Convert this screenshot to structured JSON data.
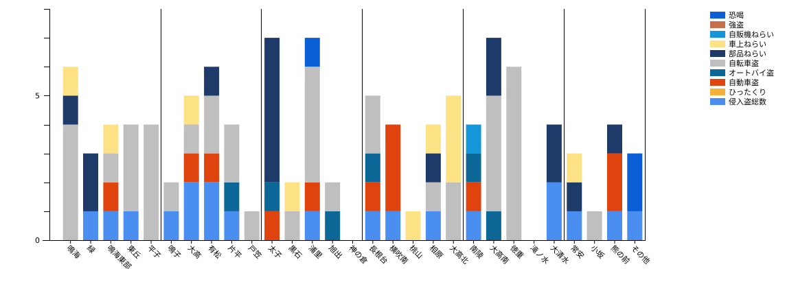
{
  "chart_data": {
    "type": "bar",
    "stacked": true,
    "title": "",
    "xlabel": "",
    "ylabel": "",
    "ylim": [
      0,
      8
    ],
    "y_ticks": [
      0,
      5
    ],
    "grid": false,
    "legend_position": "top-right",
    "categories": [
      "鳴海",
      "緑",
      "鳴海東部",
      "東丘",
      "平子",
      "鳴子",
      "大高",
      "有松",
      "片平",
      "戸笠",
      "太子",
      "黒石",
      "浦里",
      "旭出",
      "神の倉",
      "長根台",
      "横吹南",
      "桃山",
      "相原",
      "大高北",
      "南陵",
      "大高南",
      "徳重",
      "滝ノ水",
      "大清水",
      "常安",
      "小坂",
      "熊の前",
      "その他"
    ],
    "series": [
      {
        "name": "侵入盗総数",
        "color": "#4a8fef",
        "values": [
          0,
          1,
          1,
          1,
          0,
          1,
          2,
          2,
          1,
          0,
          0,
          0,
          1,
          0,
          0,
          1,
          1,
          0,
          1,
          0,
          1,
          0,
          0,
          0,
          2,
          1,
          0,
          1,
          1
        ]
      },
      {
        "name": "ひったくり",
        "color": "#f5b13a",
        "values": [
          0,
          0,
          0,
          0,
          0,
          0,
          0,
          0,
          0,
          0,
          0,
          0,
          0,
          0,
          0,
          0,
          0,
          0,
          0,
          0,
          0,
          0,
          0,
          0,
          0,
          0,
          0,
          0,
          0
        ]
      },
      {
        "name": "自動車盗",
        "color": "#e0440e",
        "values": [
          0,
          0,
          1,
          0,
          0,
          0,
          1,
          1,
          0,
          0,
          1,
          0,
          1,
          0,
          0,
          1,
          3,
          0,
          0,
          0,
          1,
          0,
          0,
          0,
          0,
          0,
          0,
          2,
          0
        ]
      },
      {
        "name": "オートバイ盗",
        "color": "#0c6696",
        "values": [
          0,
          0,
          0,
          0,
          0,
          0,
          0,
          0,
          1,
          0,
          1,
          0,
          0,
          1,
          0,
          1,
          0,
          0,
          0,
          0,
          1,
          1,
          0,
          0,
          0,
          0,
          0,
          0,
          0
        ]
      },
      {
        "name": "自転車盗",
        "color": "#bfbfbf",
        "values": [
          4,
          0,
          1,
          3,
          4,
          1,
          1,
          2,
          2,
          1,
          0,
          1,
          4,
          1,
          0,
          2,
          0,
          0,
          1,
          2,
          0,
          4,
          6,
          0,
          0,
          0,
          1,
          0,
          0
        ]
      },
      {
        "name": "部品ねらい",
        "color": "#1d3a68",
        "values": [
          1,
          2,
          0,
          0,
          0,
          0,
          0,
          1,
          0,
          0,
          5,
          0,
          0,
          0,
          0,
          0,
          0,
          0,
          1,
          0,
          0,
          2,
          0,
          0,
          2,
          1,
          0,
          1,
          0
        ]
      },
      {
        "name": "車上ねらい",
        "color": "#fde185",
        "values": [
          1,
          0,
          1,
          0,
          0,
          0,
          1,
          0,
          0,
          0,
          0,
          1,
          0,
          0,
          0,
          0,
          0,
          1,
          1,
          3,
          0,
          0,
          0,
          0,
          0,
          1,
          0,
          0,
          0
        ]
      },
      {
        "name": "自販機ねらい",
        "color": "#1596d9",
        "values": [
          0,
          0,
          0,
          0,
          0,
          0,
          0,
          0,
          0,
          0,
          0,
          0,
          0,
          0,
          0,
          0,
          0,
          0,
          0,
          0,
          1,
          0,
          0,
          0,
          0,
          0,
          0,
          0,
          0
        ]
      },
      {
        "name": "強盗",
        "color": "#c8704e",
        "values": [
          0,
          0,
          0,
          0,
          0,
          0,
          0,
          0,
          0,
          0,
          0,
          0,
          0,
          0,
          0,
          0,
          0,
          0,
          0,
          0,
          0,
          0,
          0,
          0,
          0,
          0,
          0,
          0,
          0
        ]
      },
      {
        "name": "恐喝",
        "color": "#0a5fd6",
        "values": [
          0,
          0,
          0,
          0,
          0,
          0,
          0,
          0,
          0,
          0,
          0,
          0,
          1,
          0,
          0,
          0,
          0,
          0,
          0,
          0,
          0,
          0,
          0,
          0,
          0,
          0,
          0,
          0,
          2
        ]
      }
    ],
    "legend_order": [
      "恐喝",
      "強盗",
      "自販機ねらい",
      "車上ねらい",
      "部品ねらい",
      "自転車盗",
      "オートバイ盗",
      "自動車盗",
      "ひったくり",
      "侵入盗総数"
    ]
  }
}
